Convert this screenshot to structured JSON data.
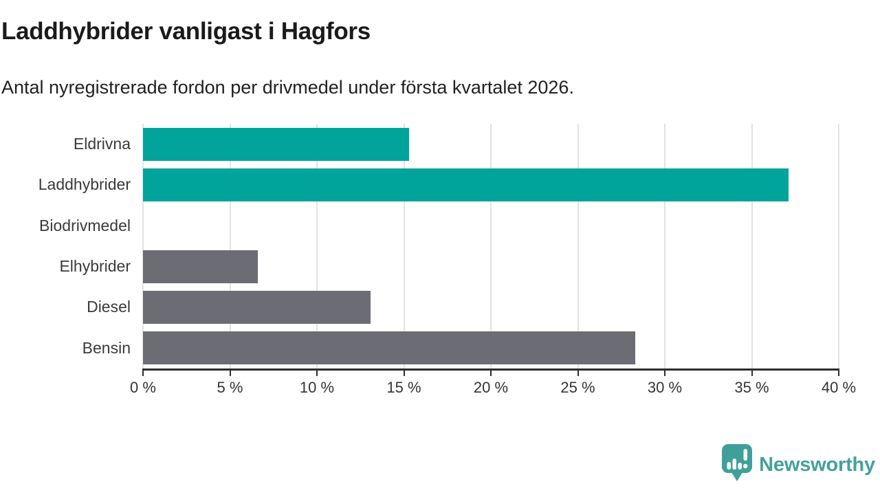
{
  "header": {
    "title": "Laddhybrider vanligast i Hagfors",
    "subtitle": "Antal nyregistrerade fordon per drivmedel under första kvartalet 2026."
  },
  "chart_data": {
    "type": "bar",
    "orientation": "horizontal",
    "title": "Laddhybrider vanligast i Hagfors",
    "subtitle": "Antal nyregistrerade fordon per drivmedel under första kvartalet 2026.",
    "categories": [
      "Eldrivna",
      "Laddhybrider",
      "Biodrivmedel",
      "Elhybrider",
      "Diesel",
      "Bensin"
    ],
    "values": [
      15.3,
      37.1,
      0,
      6.6,
      13.1,
      28.3
    ],
    "unit": "%",
    "bar_colors": [
      "#00A49A",
      "#00A49A",
      "#6C6C74",
      "#6C6C74",
      "#6C6C74",
      "#6C6C74"
    ],
    "highlight_color": "#00A49A",
    "default_color": "#6C6C74",
    "xlim": [
      0,
      40
    ],
    "x_ticks": [
      0,
      5,
      10,
      15,
      20,
      25,
      30,
      35,
      40
    ],
    "x_tick_labels": [
      "0 %",
      "5 %",
      "10 %",
      "15 %",
      "20 %",
      "25 %",
      "30 %",
      "35 %",
      "40 %"
    ],
    "xlabel": "",
    "ylabel": "",
    "grid": "vertical",
    "legend": "none",
    "gridline_color": "#E2E2E2",
    "axis_color": "#2D2D2D"
  },
  "footer": {
    "brand": "Newsworthy",
    "brand_color": "#44A19C",
    "icon_color": "#3FA09A",
    "icon": "newsworthy-speech-bubble-chart-icon"
  }
}
